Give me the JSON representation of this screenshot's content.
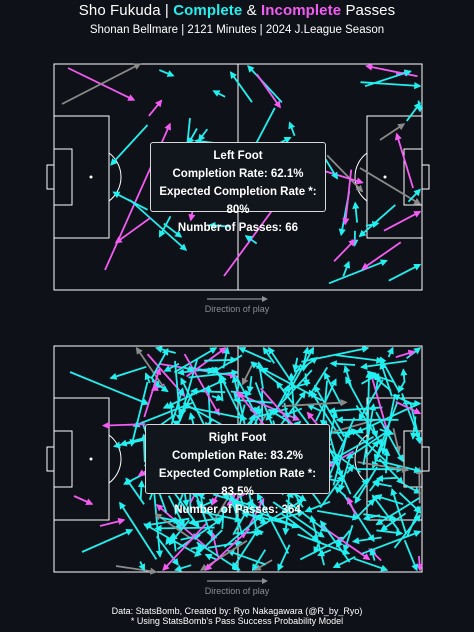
{
  "title": {
    "player": "Sho Fukuda | ",
    "complete": "Complete",
    "amp": " & ",
    "incomplete": "Incomplete",
    "suffix": " Passes"
  },
  "subtitle": "Shonan Bellmare | 2121 Minutes | 2024 J.League Season",
  "colors": {
    "background": "#0e1117",
    "complete": "#22f0f0",
    "incomplete": "#f25cf2",
    "other": "#8a8a8a",
    "lines": "#ffffff"
  },
  "left_panel": {
    "heading": "Left Foot",
    "completion": "Completion Rate: 62.1%",
    "expected": "Expected Completion Rate *: 80%",
    "passes": "Number of Passes: 66"
  },
  "right_panel": {
    "heading": "Right Foot",
    "completion": "Completion Rate: 83.2%",
    "expected": "Expected Completion Rate *: 83.5%",
    "passes": "Number of Passes: 364"
  },
  "direction_label": "Direction of play",
  "footer": {
    "line1": "Data: StatsBomb, Created by: Ryo Nakagawara (@R_by_Ryo)",
    "line2": "* Using StatsBomb's Pass Success Probability Model"
  }
}
